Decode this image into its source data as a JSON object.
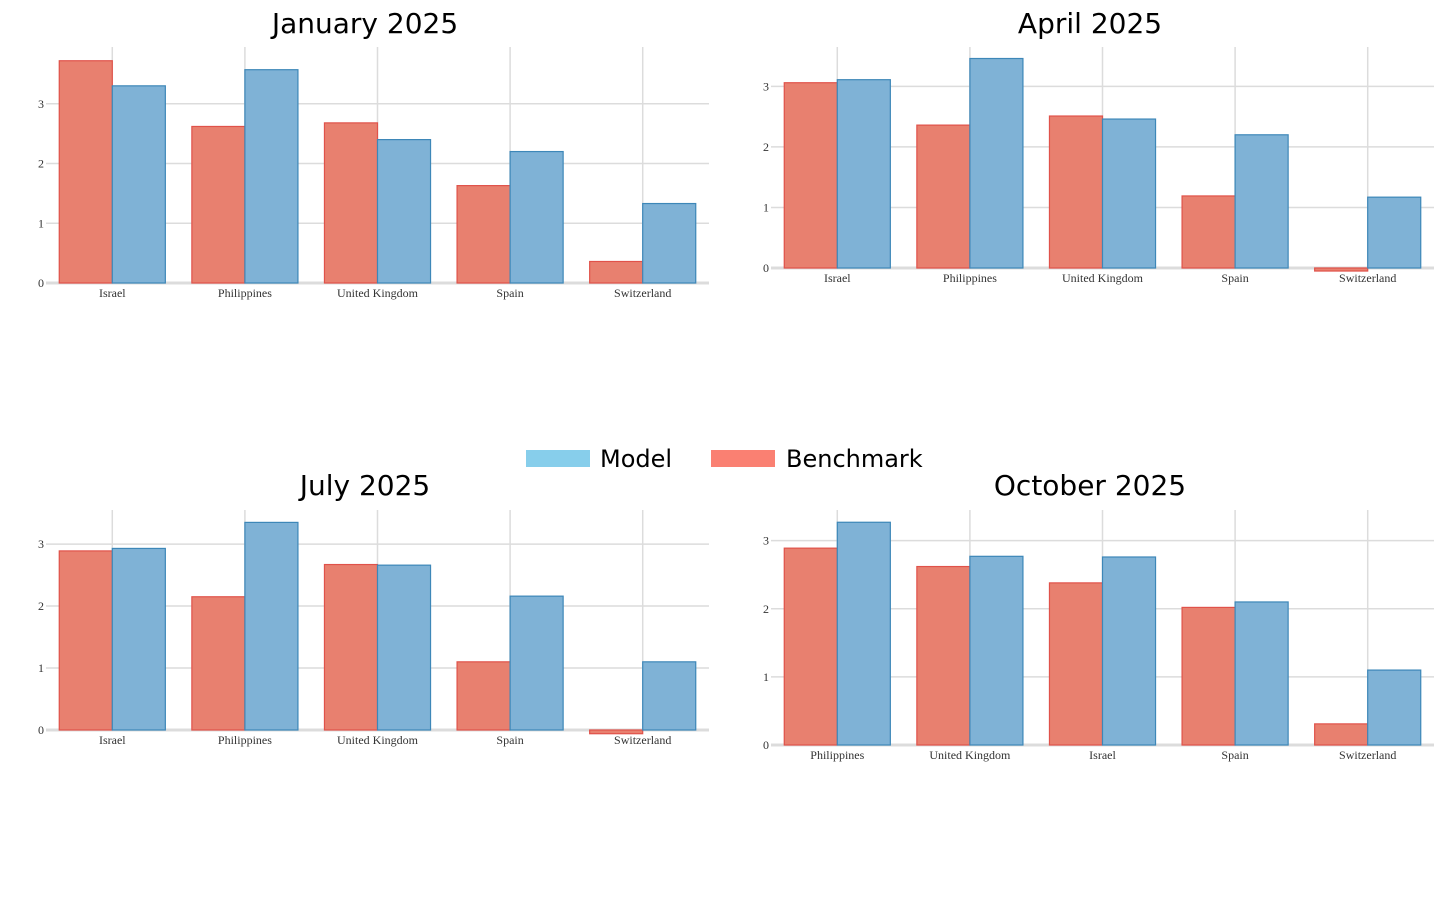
{
  "legend": {
    "items": [
      {
        "label": "Model",
        "color": "#87CEEB"
      },
      {
        "label": "Benchmark",
        "color": "#FA8072"
      }
    ]
  },
  "colors": {
    "benchmark_fill": "#E8806F",
    "benchmark_stroke": "#E0524A",
    "model_fill": "#7FB2D6",
    "model_stroke": "#3D87B8",
    "grid": "#DCDCDC"
  },
  "chart_data": [
    {
      "type": "bar",
      "title": "January 2025",
      "categories": [
        "Israel",
        "Philippines",
        "United Kingdom",
        "Spain",
        "Switzerland"
      ],
      "series": [
        {
          "name": "Benchmark",
          "values": [
            3.72,
            2.62,
            2.68,
            1.63,
            0.36
          ]
        },
        {
          "name": "Model",
          "values": [
            3.3,
            3.57,
            2.4,
            2.2,
            1.33
          ]
        }
      ],
      "yticks": [
        0,
        1,
        2,
        3
      ],
      "ylim": [
        0,
        3.95
      ],
      "grid": true
    },
    {
      "type": "bar",
      "title": "April 2025",
      "categories": [
        "Israel",
        "Philippines",
        "United Kingdom",
        "Spain",
        "Switzerland"
      ],
      "series": [
        {
          "name": "Benchmark",
          "values": [
            3.06,
            2.36,
            2.51,
            1.19,
            -0.05
          ]
        },
        {
          "name": "Model",
          "values": [
            3.11,
            3.46,
            2.46,
            2.2,
            1.17
          ]
        }
      ],
      "yticks": [
        0,
        1,
        2,
        3
      ],
      "ylim": [
        -0.05,
        3.65
      ],
      "grid": true
    },
    {
      "type": "bar",
      "title": "July 2025",
      "categories": [
        "Israel",
        "Philippines",
        "United Kingdom",
        "Spain",
        "Switzerland"
      ],
      "series": [
        {
          "name": "Benchmark",
          "values": [
            2.89,
            2.15,
            2.67,
            1.1,
            -0.06
          ]
        },
        {
          "name": "Model",
          "values": [
            2.93,
            3.35,
            2.66,
            2.16,
            1.1
          ]
        }
      ],
      "yticks": [
        0,
        1,
        2,
        3
      ],
      "ylim": [
        -0.06,
        3.55
      ],
      "grid": true
    },
    {
      "type": "bar",
      "title": "October 2025",
      "categories": [
        "Philippines",
        "United Kingdom",
        "Israel",
        "Spain",
        "Switzerland"
      ],
      "series": [
        {
          "name": "Benchmark",
          "values": [
            2.89,
            2.62,
            2.38,
            2.02,
            0.31
          ]
        },
        {
          "name": "Model",
          "values": [
            3.27,
            2.77,
            2.76,
            2.1,
            1.1
          ]
        }
      ],
      "yticks": [
        0,
        1,
        2,
        3
      ],
      "ylim": [
        0,
        3.45
      ],
      "grid": true
    }
  ]
}
